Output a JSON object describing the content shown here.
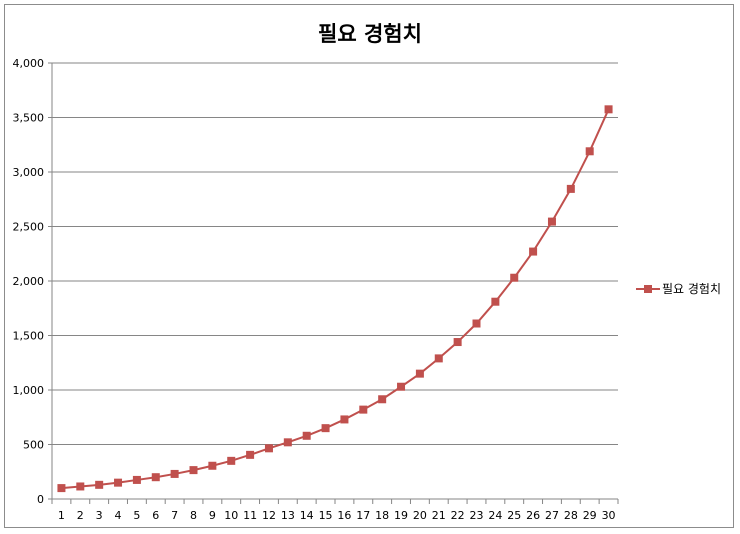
{
  "chart_data": {
    "type": "line",
    "title": "필요 경험치",
    "xlabel": "",
    "ylabel": "",
    "x": [
      1,
      2,
      3,
      4,
      5,
      6,
      7,
      8,
      9,
      10,
      11,
      12,
      13,
      14,
      15,
      16,
      17,
      18,
      19,
      20,
      21,
      22,
      23,
      24,
      25,
      26,
      27,
      28,
      29,
      30
    ],
    "y_ticks": [
      "0",
      "500",
      "1,000",
      "1,500",
      "2,000",
      "2,500",
      "3,000",
      "3,500",
      "4,000"
    ],
    "ylim": [
      0,
      4000
    ],
    "grid": "horizontal",
    "legend_position": "right",
    "series": [
      {
        "name": "필요 경험치",
        "color": "#c0504d",
        "marker": "square",
        "values": [
          100,
          115,
          130,
          150,
          175,
          200,
          230,
          265,
          305,
          350,
          405,
          465,
          520,
          580,
          650,
          730,
          820,
          915,
          1030,
          1150,
          1290,
          1440,
          1610,
          1810,
          2030,
          2270,
          2545,
          2845,
          3190,
          3575
        ]
      }
    ]
  }
}
